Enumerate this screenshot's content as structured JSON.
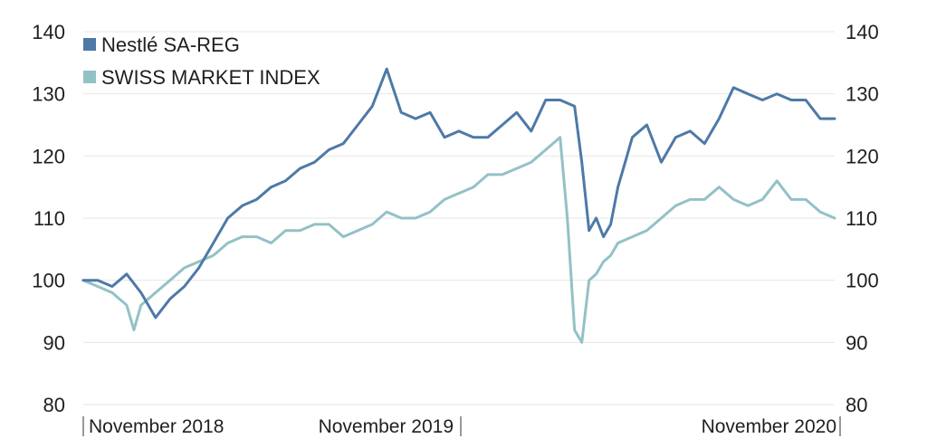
{
  "chart_data": {
    "type": "line",
    "title": "",
    "xlabel": "",
    "ylabel": "",
    "ylim": [
      80,
      140
    ],
    "y_ticks": [
      80,
      90,
      100,
      110,
      120,
      130,
      140
    ],
    "y_tick_labels": [
      "80",
      "90",
      "100",
      "110",
      "120",
      "130",
      "140"
    ],
    "grid": true,
    "legend": "top-left",
    "x_tick_labels": [
      "November 2018",
      "November 2019",
      "November 2020"
    ],
    "x_tick_positions": [
      0.5,
      52,
      104
    ],
    "x_range": [
      0,
      104
    ],
    "x_unit": "weeks since Nov 2018",
    "series": [
      {
        "name": "Nestlé SA-REG",
        "color": "#4e79a7",
        "x": [
          0,
          2,
          4,
          6,
          8,
          10,
          12,
          14,
          16,
          18,
          20,
          22,
          24,
          26,
          28,
          30,
          32,
          34,
          36,
          38,
          40,
          42,
          44,
          46,
          48,
          50,
          52,
          54,
          56,
          58,
          60,
          62,
          64,
          66,
          68,
          69,
          70,
          71,
          72,
          73,
          74,
          75,
          76,
          78,
          80,
          82,
          84,
          86,
          88,
          90,
          92,
          94,
          96,
          98,
          100,
          102,
          104
        ],
        "values": [
          100,
          100,
          99,
          101,
          98,
          94,
          97,
          99,
          102,
          106,
          110,
          112,
          113,
          115,
          116,
          118,
          119,
          121,
          122,
          125,
          128,
          134,
          127,
          126,
          127,
          123,
          124,
          123,
          123,
          125,
          127,
          124,
          129,
          129,
          128,
          119,
          108,
          110,
          107,
          109,
          115,
          119,
          123,
          125,
          119,
          123,
          124,
          122,
          126,
          131,
          130,
          129,
          130,
          129,
          129,
          126,
          126
        ]
      },
      {
        "name": "SWISS MARKET INDEX",
        "color": "#93c1c6",
        "x": [
          0,
          2,
          4,
          6,
          7,
          8,
          10,
          12,
          14,
          16,
          18,
          20,
          22,
          24,
          26,
          28,
          30,
          32,
          34,
          36,
          38,
          40,
          42,
          44,
          46,
          48,
          50,
          52,
          54,
          56,
          58,
          60,
          62,
          64,
          66,
          67,
          68,
          69,
          70,
          71,
          72,
          73,
          74,
          76,
          78,
          80,
          82,
          84,
          86,
          88,
          90,
          92,
          94,
          96,
          98,
          100,
          102,
          104
        ],
        "values": [
          100,
          99,
          98,
          96,
          92,
          96,
          98,
          100,
          102,
          103,
          104,
          106,
          107,
          107,
          106,
          108,
          108,
          109,
          109,
          107,
          108,
          109,
          111,
          110,
          110,
          111,
          113,
          114,
          115,
          117,
          117,
          118,
          119,
          121,
          123,
          110,
          92,
          90,
          100,
          101,
          103,
          104,
          106,
          107,
          108,
          110,
          112,
          113,
          113,
          115,
          113,
          112,
          113,
          116,
          113,
          113,
          111,
          110
        ]
      }
    ]
  }
}
